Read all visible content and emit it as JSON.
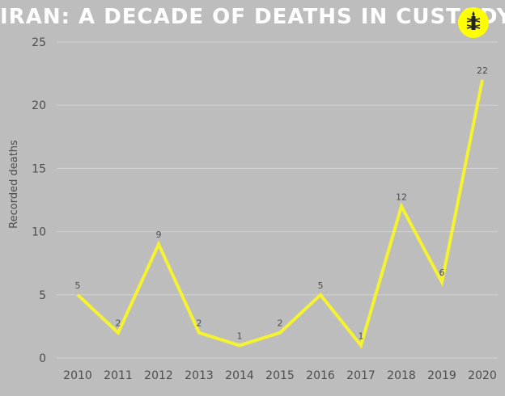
{
  "header": {
    "title": "IRAN: A DECADE OF DEATHS IN CUSTODY",
    "logo_icon": "candle-in-barbed-wire-icon",
    "logo_color": "#ffff00"
  },
  "chart_data": {
    "type": "line",
    "title": "IRAN: A DECADE OF DEATHS IN CUSTODY",
    "xlabel": "",
    "ylabel": "Recorded deaths",
    "categories": [
      "2010",
      "2011",
      "2012",
      "2013",
      "2014",
      "2015",
      "2016",
      "2017",
      "2018",
      "2019",
      "2020"
    ],
    "series": [
      {
        "values": [
          5,
          2,
          9,
          2,
          1,
          2,
          5,
          1,
          12,
          6,
          22
        ],
        "color": "#f5f230"
      }
    ],
    "data_labels": [
      "5",
      "2",
      "9",
      "2",
      "1",
      "2",
      "5",
      "1",
      "12",
      "6",
      "22"
    ],
    "yticks": [
      "0",
      "5",
      "10",
      "15",
      "20",
      "25"
    ],
    "ylim": [
      0,
      25
    ],
    "grid": true,
    "legend": "none"
  }
}
